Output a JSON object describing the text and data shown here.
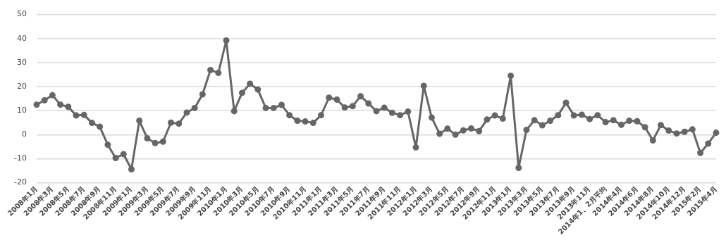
{
  "chart_data": {
    "type": "line",
    "categories": [
      "2008年1月",
      null,
      "2008年3月",
      null,
      "2008年5月",
      null,
      "2008年7月",
      null,
      "2008年9月",
      null,
      "2008年11月",
      null,
      "2009年1月",
      null,
      "2009年3月",
      null,
      "2009年5月",
      null,
      "2009年7月",
      null,
      "2009年9月",
      null,
      "2009年11月",
      null,
      "2010年1月",
      null,
      "2010年3月",
      null,
      "2010年5月",
      null,
      "2010年7月",
      null,
      "2010年9月",
      null,
      "2010年11月",
      null,
      "2011年1月",
      null,
      "2011年3月",
      null,
      "2011年5月",
      null,
      "2011年7月",
      null,
      "2011年9月",
      null,
      "2011年11月",
      null,
      "2012年1月",
      null,
      "2012年3月",
      null,
      "2012年5月",
      null,
      "2012年7月",
      null,
      "2012年9月",
      null,
      "2012年11月",
      null,
      "2013年1月",
      null,
      "2013年3月",
      null,
      "2013年5月",
      null,
      "2013年7月",
      null,
      "2013年9月",
      null,
      "2013年11月",
      null,
      "2014年1、2月平均",
      null,
      "2014年4月",
      null,
      "2014年6月",
      null,
      "2014年8月",
      null,
      "2014年10月",
      null,
      "2014年12月",
      null,
      "2015年2月",
      null,
      "2015年4月"
    ],
    "series": [
      {
        "color": "#666666",
        "values": [
          12.5,
          14.3,
          16.4,
          12.5,
          11.6,
          8.0,
          8.2,
          4.9,
          3.3,
          -4.2,
          -9.7,
          -8.1,
          -14.4,
          5.8,
          -1.5,
          -3.5,
          -2.9,
          5.0,
          4.6,
          9.2,
          11.1,
          16.8,
          26.9,
          25.7,
          39.2,
          9.8,
          17.4,
          21.2,
          18.8,
          11.1,
          11.1,
          12.4,
          8.1,
          5.8,
          5.5,
          4.9,
          8.1,
          15.4,
          14.6,
          11.3,
          11.9,
          16.0,
          13.0,
          9.8,
          11.2,
          9.1,
          8.1,
          9.6,
          -5.3,
          20.3,
          7.1,
          0.4,
          2.5,
          0,
          1.8,
          2.6,
          1.5,
          6.3,
          8.0,
          6.7,
          24.5,
          -13.8,
          2.0,
          6.0,
          3.9,
          5.8,
          8.1,
          13.3,
          8.0,
          8.3,
          6.5,
          8.1,
          5.2,
          6.0,
          4.1,
          5.8,
          5.6,
          3.1,
          -2.4,
          4.0,
          1.7,
          0.5,
          1.2,
          2.2,
          -7.6,
          -3.7,
          0.8
        ]
      }
    ],
    "ylim": [
      -20,
      50
    ],
    "yticks": [
      -20,
      -10,
      0,
      10,
      20,
      30,
      40,
      50
    ],
    "grid": "y",
    "marker": "circle",
    "line_style": "solid"
  }
}
